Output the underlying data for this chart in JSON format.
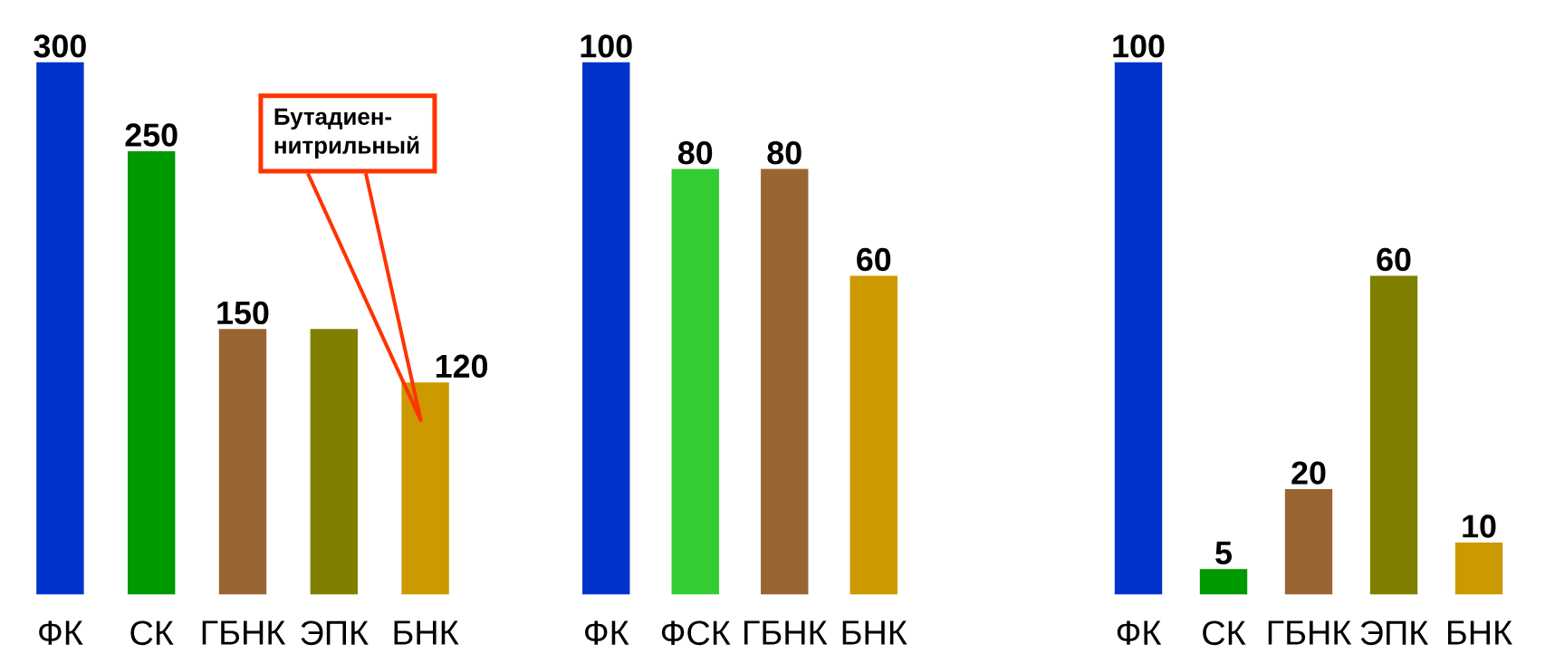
{
  "chart_data": [
    {
      "type": "bar",
      "categories": [
        "ФК",
        "СК",
        "ГБНК",
        "ЭПК",
        "БНК"
      ],
      "values": [
        300,
        250,
        150,
        150,
        120
      ],
      "colors": [
        "#0033cc",
        "#009900",
        "#996633",
        "#808000",
        "#cc9900"
      ],
      "value_labels": [
        "300",
        "250",
        "150",
        null,
        "120"
      ],
      "annotations": [
        "Бутадиен-нитрильный"
      ]
    },
    {
      "type": "bar",
      "categories": [
        "ФК",
        "ФСК",
        "ГБНК",
        "БНК"
      ],
      "values": [
        100,
        80,
        80,
        60
      ],
      "colors": [
        "#0033cc",
        "#33cc33",
        "#996633",
        "#cc9900"
      ],
      "data_labels": true
    },
    {
      "type": "bar",
      "categories": [
        "ФК",
        "СК",
        "ГБНК",
        "ЭПК",
        "БНК"
      ],
      "values": [
        100,
        5,
        20,
        60,
        10
      ],
      "colors": [
        "#0033cc",
        "#009900",
        "#996633",
        "#808000",
        "#cc9900"
      ],
      "data_labels": true
    }
  ]
}
